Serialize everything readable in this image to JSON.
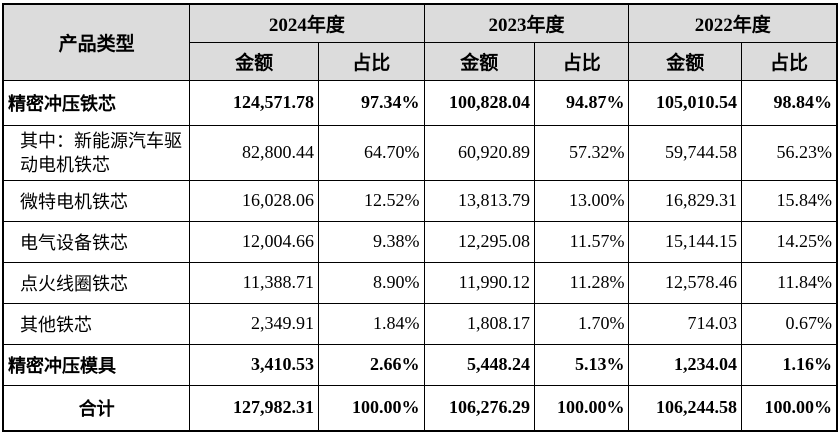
{
  "header": {
    "product_type": "产品类型",
    "years": [
      "2024年度",
      "2023年度",
      "2022年度"
    ],
    "amount": "金额",
    "ratio": "占比"
  },
  "rows": [
    {
      "label": "精密冲压铁芯",
      "v": [
        "124,571.78",
        "97.34%",
        "100,828.04",
        "94.87%",
        "105,010.54",
        "98.84%"
      ]
    },
    {
      "label": "其中：新能源汽车驱动电机铁芯",
      "v": [
        "82,800.44",
        "64.70%",
        "60,920.89",
        "57.32%",
        "59,744.58",
        "56.23%"
      ]
    },
    {
      "label": "微特电机铁芯",
      "v": [
        "16,028.06",
        "12.52%",
        "13,813.79",
        "13.00%",
        "16,829.31",
        "15.84%"
      ]
    },
    {
      "label": "电气设备铁芯",
      "v": [
        "12,004.66",
        "9.38%",
        "12,295.08",
        "11.57%",
        "15,144.15",
        "14.25%"
      ]
    },
    {
      "label": "点火线圈铁芯",
      "v": [
        "11,388.71",
        "8.90%",
        "11,990.12",
        "11.28%",
        "12,578.46",
        "11.84%"
      ]
    },
    {
      "label": "其他铁芯",
      "v": [
        "2,349.91",
        "1.84%",
        "1,808.17",
        "1.70%",
        "714.03",
        "0.67%"
      ]
    },
    {
      "label": "精密冲压模具",
      "v": [
        "3,410.53",
        "2.66%",
        "5,448.24",
        "5.13%",
        "1,234.04",
        "1.16%"
      ]
    },
    {
      "label": "合计",
      "v": [
        "127,982.31",
        "100.00%",
        "106,276.29",
        "100.00%",
        "106,244.58",
        "100.00%"
      ]
    }
  ]
}
